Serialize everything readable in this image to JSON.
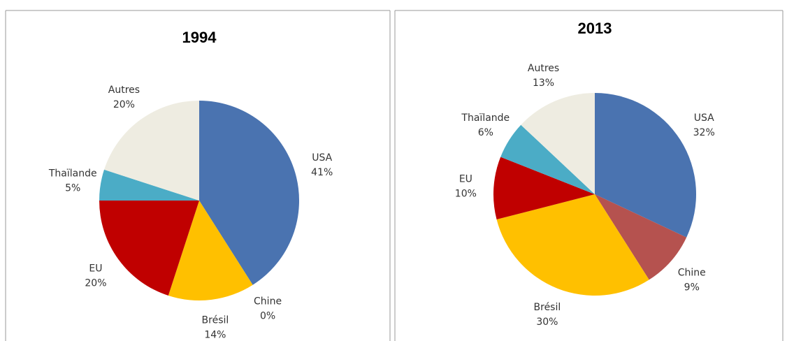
{
  "chart_data": [
    {
      "type": "pie",
      "title": "1994",
      "categories": [
        "USA",
        "Chine",
        "Brésil",
        "EU",
        "Thaïlande",
        "Autres"
      ],
      "values": [
        41,
        0,
        14,
        20,
        5,
        20
      ],
      "value_labels": [
        "41%",
        "0%",
        "14%",
        "20%",
        "5%",
        "20%"
      ],
      "colors": [
        "#4a73b0",
        "#b5524f",
        "#ffc000",
        "#c00000",
        "#4bacc6",
        "#eeece1"
      ]
    },
    {
      "type": "pie",
      "title": "2013",
      "categories": [
        "USA",
        "Chine",
        "Brésil",
        "EU",
        "Thaïlande",
        "Autres"
      ],
      "values": [
        32,
        9,
        30,
        10,
        6,
        13
      ],
      "value_labels": [
        "32%",
        "9%",
        "30%",
        "10%",
        "6%",
        "13%"
      ],
      "colors": [
        "#4a73b0",
        "#b5524f",
        "#ffc000",
        "#c00000",
        "#4bacc6",
        "#eeece1"
      ]
    }
  ]
}
